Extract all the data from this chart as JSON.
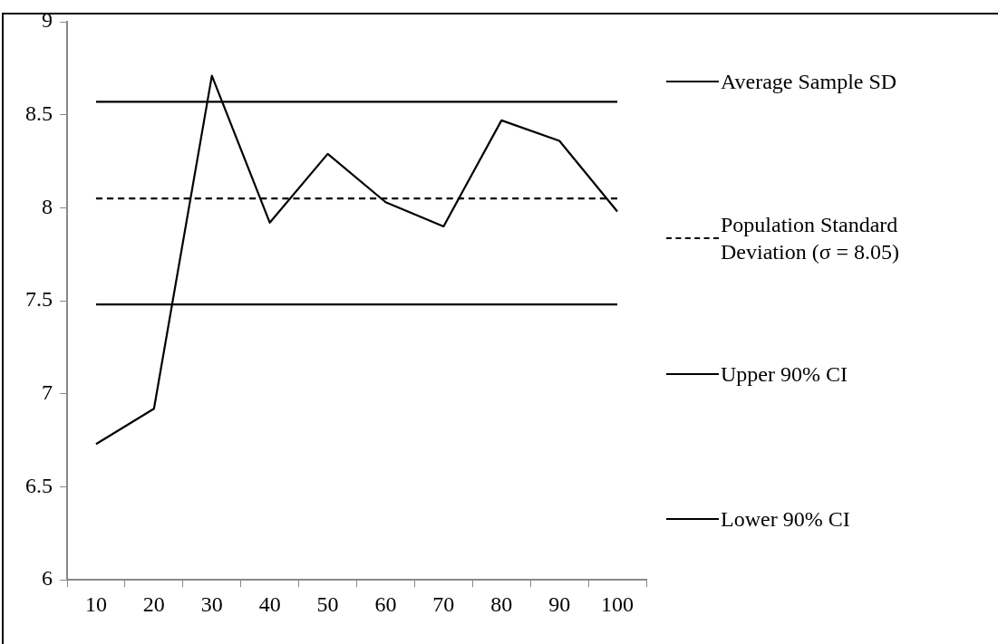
{
  "chart_data": {
    "type": "line",
    "categories": [
      "10",
      "20",
      "30",
      "40",
      "50",
      "60",
      "70",
      "80",
      "90",
      "100"
    ],
    "series": [
      {
        "name": "Average Sample SD",
        "color": "#000000",
        "line_style": "solid",
        "values": [
          6.73,
          6.92,
          8.71,
          7.92,
          8.29,
          8.03,
          7.9,
          8.47,
          8.36,
          7.98
        ]
      },
      {
        "name": "Population Standard Deviation (σ = 8.05)",
        "color": "#000000",
        "line_style": "dashed",
        "values": [
          8.05,
          8.05,
          8.05,
          8.05,
          8.05,
          8.05,
          8.05,
          8.05,
          8.05,
          8.05
        ]
      },
      {
        "name": "Upper 90% CI",
        "color": "#000000",
        "line_style": "solid",
        "values": [
          8.57,
          8.57,
          8.57,
          8.57,
          8.57,
          8.57,
          8.57,
          8.57,
          8.57,
          8.57
        ]
      },
      {
        "name": "Lower 90% CI",
        "color": "#000000",
        "line_style": "solid",
        "values": [
          7.48,
          7.48,
          7.48,
          7.48,
          7.48,
          7.48,
          7.48,
          7.48,
          7.48,
          7.48
        ]
      }
    ],
    "ylim": [
      6,
      9
    ],
    "yticks": [
      6,
      6.5,
      7,
      7.5,
      8,
      8.5,
      9
    ],
    "grid": false,
    "legend": "right",
    "marker": "none"
  }
}
